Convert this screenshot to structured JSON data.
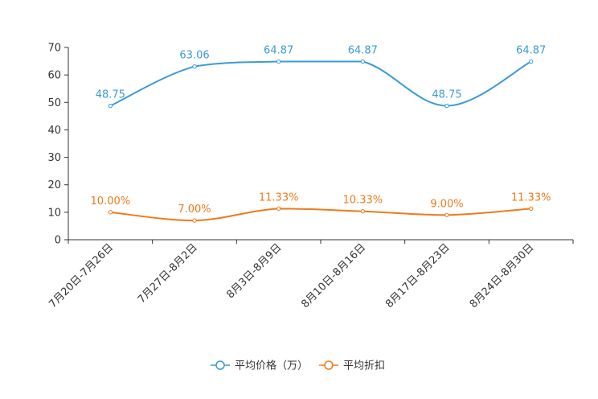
{
  "chart_data": {
    "type": "line",
    "categories": [
      "7月20日-7月26日",
      "7月27日-8月2日",
      "8月3日-8月9日",
      "8月10日-8月16日",
      "8月17日-8月23日",
      "8月24日-8月30日"
    ],
    "series": [
      {
        "name": "平均价格（万）",
        "color": "#3a9bd5",
        "values": [
          48.75,
          63.06,
          64.87,
          64.87,
          48.75,
          64.87
        ],
        "labels": [
          "48.75",
          "63.06",
          "64.87",
          "64.87",
          "48.75",
          "64.87"
        ]
      },
      {
        "name": "平均折扣",
        "color": "#f07a1a",
        "values": [
          10.0,
          7.0,
          11.33,
          10.33,
          9.0,
          11.33
        ],
        "labels": [
          "10.00%",
          "7.00%",
          "11.33%",
          "10.33%",
          "9.00%",
          "11.33%"
        ]
      }
    ],
    "y_ticks": [
      "0",
      "10",
      "20",
      "30",
      "40",
      "50",
      "60",
      "70"
    ],
    "ylim": [
      0,
      70
    ],
    "title": "",
    "xlabel": "",
    "ylabel": "",
    "legend_position": "bottom-center"
  }
}
